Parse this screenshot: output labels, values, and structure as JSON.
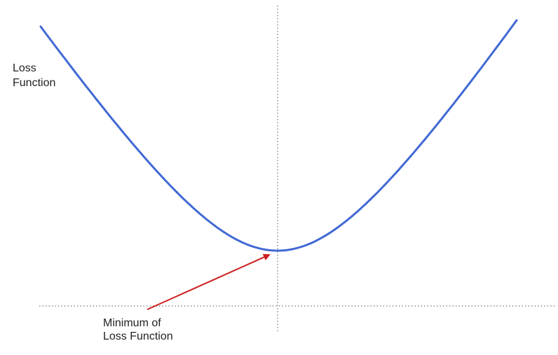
{
  "y_axis_label": {
    "line1": "Loss",
    "line2": "Function"
  },
  "annotation": {
    "line1": "Minimum of",
    "line2": "Loss Function"
  },
  "colors": {
    "curve": "#4169d4",
    "arrow": "#cc1f1f",
    "axis": "#555555",
    "text": "#222222"
  }
}
